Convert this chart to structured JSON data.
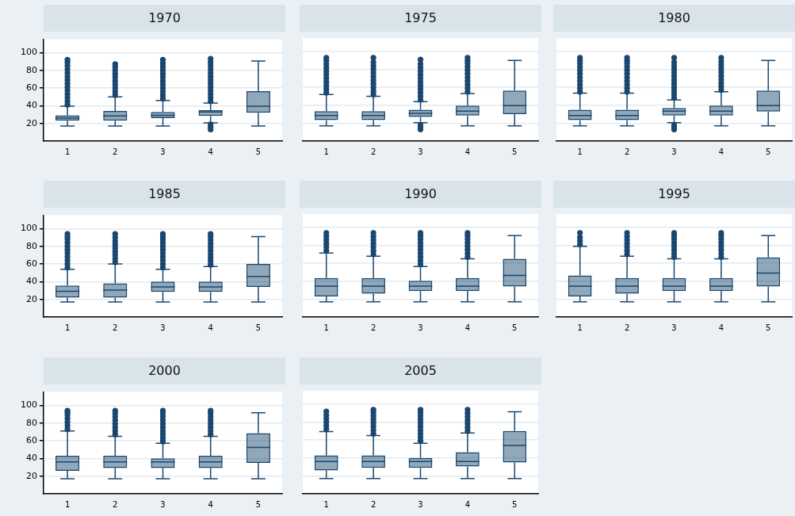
{
  "chart_data": [
    {
      "type": "box",
      "title": "1970",
      "categories": [
        "1",
        "2",
        "3",
        "4",
        "5"
      ],
      "ylim": [
        0,
        115
      ],
      "yticks": [
        20,
        40,
        60,
        80,
        100
      ],
      "grid": "y",
      "color": "#1a476f",
      "boxes": [
        {
          "low": 17,
          "q1": 23,
          "median": 26,
          "q3": 29,
          "high": 39.5,
          "outliers": [
            41,
            45,
            49,
            53,
            57,
            61,
            65,
            69,
            73,
            77,
            81,
            85,
            89,
            92
          ]
        },
        {
          "low": 17,
          "q1": 23,
          "median": 28.5,
          "q3": 34,
          "high": 50,
          "outliers": [
            52,
            56,
            60,
            64,
            68,
            72,
            76,
            80,
            84,
            87
          ]
        },
        {
          "low": 17,
          "q1": 26,
          "median": 29,
          "q3": 33,
          "high": 46,
          "outliers": [
            48,
            52,
            56,
            60,
            64,
            68,
            72,
            76,
            80,
            84,
            88,
            92
          ]
        },
        {
          "low": 20.5,
          "q1": 28.5,
          "median": 33,
          "q3": 35,
          "high": 43,
          "outliers": [
            13,
            16,
            19,
            45,
            49,
            53,
            57,
            61,
            65,
            69,
            73,
            77,
            81,
            85,
            89,
            93
          ]
        },
        {
          "low": 17,
          "q1": 32,
          "median": 39.5,
          "q3": 56.5,
          "high": 90.5
        }
      ]
    },
    {
      "type": "box",
      "title": "1975",
      "categories": [
        "1",
        "2",
        "3",
        "4",
        "5"
      ],
      "ylim": [
        0,
        115
      ],
      "yticks": [
        20,
        40,
        60,
        80,
        100
      ],
      "grid": "y",
      "tick_labels": "x",
      "color": "#1a476f",
      "boxes": [
        {
          "low": 17,
          "q1": 23.5,
          "median": 28.5,
          "q3": 33.5,
          "high": 52,
          "outliers": [
            54,
            58,
            62,
            66,
            70,
            74,
            78,
            82,
            86,
            90,
            93
          ]
        },
        {
          "low": 17,
          "q1": 23.5,
          "median": 28.5,
          "q3": 33.5,
          "high": 50,
          "outliers": [
            52,
            56,
            60,
            64,
            68,
            72,
            76,
            80,
            84,
            88,
            93
          ]
        },
        {
          "low": 20.5,
          "q1": 27,
          "median": 31,
          "q3": 35,
          "high": 44,
          "outliers": [
            13,
            16,
            18,
            46,
            50,
            54,
            58,
            62,
            66,
            70,
            74,
            78,
            82,
            86,
            91
          ]
        },
        {
          "low": 17,
          "q1": 28.5,
          "median": 33.5,
          "q3": 39.5,
          "high": 53,
          "outliers": [
            55,
            59,
            63,
            67,
            71,
            75,
            79,
            83,
            87,
            90,
            93
          ]
        },
        {
          "low": 17,
          "q1": 30,
          "median": 39.5,
          "q3": 56.5,
          "high": 90
        }
      ]
    },
    {
      "type": "box",
      "title": "1980",
      "categories": [
        "1",
        "2",
        "3",
        "4",
        "5"
      ],
      "ylim": [
        0,
        115
      ],
      "yticks": [
        20,
        40,
        60,
        80,
        100
      ],
      "grid": "y",
      "tick_labels": "x",
      "color": "#1a476f",
      "boxes": [
        {
          "low": 17,
          "q1": 23.5,
          "median": 28.5,
          "q3": 35,
          "high": 53.5,
          "outliers": [
            55,
            59,
            63,
            67,
            71,
            75,
            79,
            83,
            87,
            90,
            93
          ]
        },
        {
          "low": 17,
          "q1": 23.5,
          "median": 28.5,
          "q3": 35,
          "high": 53.5,
          "outliers": [
            55,
            59,
            63,
            67,
            71,
            75,
            79,
            83,
            87,
            90,
            93
          ]
        },
        {
          "low": 20.5,
          "q1": 28.5,
          "median": 33.5,
          "q3": 37,
          "high": 46,
          "outliers": [
            13,
            16,
            18,
            48,
            52,
            56,
            60,
            64,
            68,
            72,
            76,
            80,
            84,
            88,
            93
          ]
        },
        {
          "low": 17,
          "q1": 28.5,
          "median": 33.5,
          "q3": 39.5,
          "high": 55,
          "outliers": [
            57,
            61,
            65,
            69,
            73,
            77,
            81,
            85,
            89,
            93
          ]
        },
        {
          "low": 17,
          "q1": 33,
          "median": 39.5,
          "q3": 56.5,
          "high": 90
        }
      ]
    },
    {
      "type": "box",
      "title": "1985",
      "categories": [
        "1",
        "2",
        "3",
        "4",
        "5"
      ],
      "ylim": [
        0,
        115
      ],
      "yticks": [
        20,
        40,
        60,
        80,
        100
      ],
      "grid": "y",
      "color": "#1a476f",
      "boxes": [
        {
          "low": 17,
          "q1": 22,
          "median": 29,
          "q3": 35.5,
          "high": 54,
          "outliers": [
            56,
            60,
            64,
            68,
            72,
            76,
            80,
            84,
            88,
            91,
            94
          ]
        },
        {
          "low": 17,
          "q1": 22,
          "median": 30.5,
          "q3": 38,
          "high": 60,
          "outliers": [
            62,
            66,
            70,
            74,
            78,
            82,
            86,
            90,
            94
          ]
        },
        {
          "low": 17,
          "q1": 28.5,
          "median": 34,
          "q3": 40,
          "high": 54,
          "outliers": [
            56,
            60,
            64,
            68,
            72,
            76,
            80,
            84,
            88,
            91,
            94
          ]
        },
        {
          "low": 17,
          "q1": 28.5,
          "median": 34,
          "q3": 40,
          "high": 57,
          "outliers": [
            59,
            63,
            67,
            71,
            75,
            79,
            83,
            87,
            91,
            94
          ]
        },
        {
          "low": 17,
          "q1": 34,
          "median": 46,
          "q3": 60,
          "high": 91
        }
      ]
    },
    {
      "type": "box",
      "title": "1990",
      "categories": [
        "1",
        "2",
        "3",
        "4",
        "5"
      ],
      "ylim": [
        0,
        115
      ],
      "yticks": [
        20,
        40,
        60,
        80,
        100
      ],
      "grid": "y",
      "tick_labels": "x",
      "color": "#1a476f",
      "boxes": [
        {
          "low": 17,
          "q1": 23,
          "median": 34.5,
          "q3": 43.5,
          "high": 71.5,
          "outliers": [
            74,
            78,
            82,
            86,
            90,
            94
          ]
        },
        {
          "low": 17,
          "q1": 26,
          "median": 34.5,
          "q3": 43.5,
          "high": 68,
          "outliers": [
            70,
            74,
            78,
            82,
            86,
            90,
            94
          ]
        },
        {
          "low": 17,
          "q1": 29,
          "median": 34.5,
          "q3": 40.5,
          "high": 56.5,
          "outliers": [
            59,
            63,
            67,
            71,
            75,
            79,
            83,
            87,
            91,
            94
          ]
        },
        {
          "low": 17,
          "q1": 29,
          "median": 34.5,
          "q3": 43.5,
          "high": 65,
          "outliers": [
            67,
            71,
            75,
            79,
            83,
            87,
            91,
            94
          ]
        },
        {
          "low": 17,
          "q1": 34,
          "median": 46.5,
          "q3": 65,
          "high": 91
        }
      ]
    },
    {
      "type": "box",
      "title": "1995",
      "categories": [
        "1",
        "2",
        "3",
        "4",
        "5"
      ],
      "ylim": [
        0,
        115
      ],
      "yticks": [
        20,
        40,
        60,
        80,
        100
      ],
      "grid": "y",
      "tick_labels": "x",
      "color": "#1a476f",
      "boxes": [
        {
          "low": 17,
          "q1": 23,
          "median": 34.5,
          "q3": 46.5,
          "high": 79,
          "outliers": [
            81,
            85,
            89,
            94
          ]
        },
        {
          "low": 17,
          "q1": 26,
          "median": 34.5,
          "q3": 43.5,
          "high": 68,
          "outliers": [
            70,
            74,
            78,
            82,
            86,
            90,
            94
          ]
        },
        {
          "low": 17,
          "q1": 29,
          "median": 34.5,
          "q3": 43.5,
          "high": 65,
          "outliers": [
            67,
            71,
            75,
            79,
            83,
            87,
            91,
            94
          ]
        },
        {
          "low": 17,
          "q1": 29,
          "median": 34.5,
          "q3": 43.5,
          "high": 65,
          "outliers": [
            67,
            71,
            75,
            79,
            83,
            87,
            91,
            94
          ]
        },
        {
          "low": 17,
          "q1": 34,
          "median": 49,
          "q3": 66.5,
          "high": 91
        }
      ]
    },
    {
      "type": "box",
      "title": "2000",
      "categories": [
        "1",
        "2",
        "3",
        "4",
        "5"
      ],
      "ylim": [
        0,
        115
      ],
      "yticks": [
        20,
        40,
        60,
        80,
        100
      ],
      "grid": "y",
      "color": "#1a476f",
      "boxes": [
        {
          "low": 17,
          "q1": 26,
          "median": 36,
          "q3": 43,
          "high": 71,
          "outliers": [
            73,
            77,
            81,
            85,
            89,
            92,
            94
          ]
        },
        {
          "low": 17,
          "q1": 29,
          "median": 36,
          "q3": 43,
          "high": 65,
          "outliers": [
            67,
            71,
            75,
            79,
            83,
            87,
            91,
            94
          ]
        },
        {
          "low": 17,
          "q1": 29,
          "median": 36,
          "q3": 40,
          "high": 57,
          "outliers": [
            59,
            63,
            67,
            71,
            75,
            79,
            83,
            87,
            91,
            94
          ]
        },
        {
          "low": 17,
          "q1": 29,
          "median": 36,
          "q3": 43,
          "high": 65,
          "outliers": [
            67,
            71,
            75,
            79,
            83,
            87,
            91,
            94
          ]
        },
        {
          "low": 17,
          "q1": 35,
          "median": 52.5,
          "q3": 68.5,
          "high": 91.5
        }
      ]
    },
    {
      "type": "box",
      "title": "2005",
      "categories": [
        "1",
        "2",
        "3",
        "4",
        "5"
      ],
      "ylim": [
        0,
        115
      ],
      "yticks": [
        20,
        40,
        60,
        80,
        100
      ],
      "grid": "y",
      "tick_labels": "x",
      "color": "#1a476f",
      "boxes": [
        {
          "low": 17,
          "q1": 26,
          "median": 36,
          "q3": 43,
          "high": 69.5,
          "outliers": [
            72,
            76,
            80,
            84,
            88,
            92
          ]
        },
        {
          "low": 17,
          "q1": 29,
          "median": 36,
          "q3": 43,
          "high": 65,
          "outliers": [
            67,
            71,
            75,
            79,
            83,
            87,
            91,
            94
          ]
        },
        {
          "low": 17,
          "q1": 29,
          "median": 36,
          "q3": 40,
          "high": 56.5,
          "outliers": [
            59,
            63,
            67,
            71,
            75,
            79,
            83,
            87,
            91,
            94
          ]
        },
        {
          "low": 17,
          "q1": 30.5,
          "median": 36,
          "q3": 46.5,
          "high": 68,
          "outliers": [
            70,
            74,
            78,
            82,
            86,
            90,
            94
          ]
        },
        {
          "low": 17,
          "q1": 35,
          "median": 54,
          "q3": 70,
          "high": 91.5
        }
      ]
    }
  ]
}
